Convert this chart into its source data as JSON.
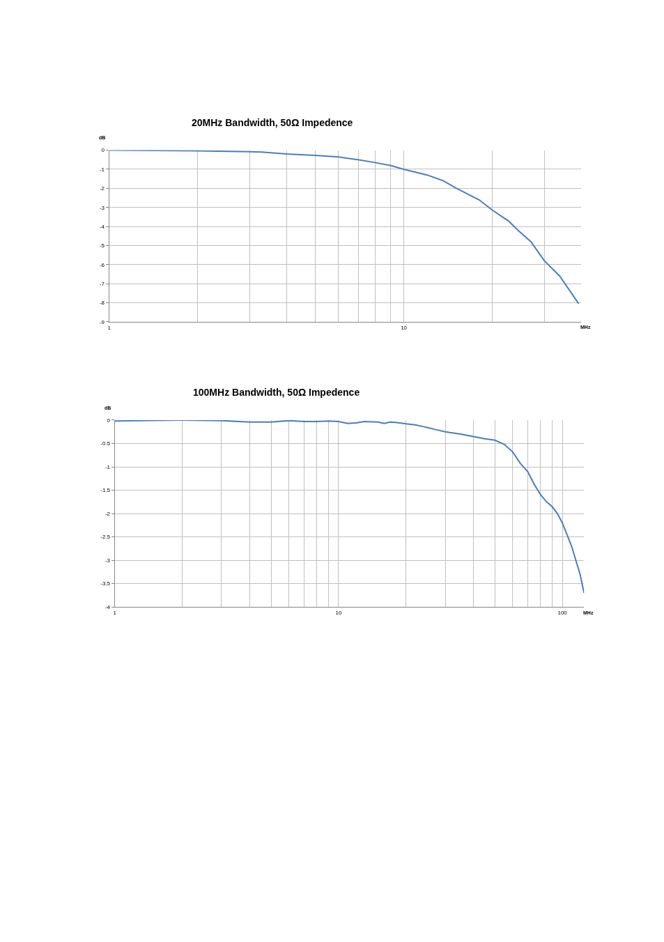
{
  "chart_data": [
    {
      "type": "line",
      "title": "20MHz Bandwidth, 50Ω Impedence",
      "xlabel": "MHz",
      "ylabel": "dB",
      "log": "x",
      "grid": true,
      "marker": "none",
      "xlim": [
        1,
        40
      ],
      "xticks": [
        1,
        {
          "value": 2,
          "label": null
        },
        {
          "value": 3,
          "label": null
        },
        {
          "value": 4,
          "label": null
        },
        {
          "value": 5,
          "label": null
        },
        {
          "value": 6,
          "label": null
        },
        {
          "value": 7,
          "label": null
        },
        {
          "value": 8,
          "label": null
        },
        {
          "value": 9,
          "label": null
        },
        10,
        {
          "value": 20,
          "label": null
        },
        {
          "value": 30,
          "label": null
        }
      ],
      "ylim": [
        -9,
        0
      ],
      "yticks": [
        0,
        -1,
        -2,
        -3,
        -4,
        -5,
        -6,
        -7,
        -8,
        -9
      ],
      "series": [
        {
          "color": "#4a7ebb",
          "x": [
            1,
            2,
            3,
            3.3,
            4,
            5,
            6,
            7,
            8,
            9,
            10,
            12,
            13.6,
            15.1,
            18,
            20,
            22.6,
            24.4,
            27,
            30,
            33.8,
            39.2
          ],
          "values": [
            0,
            -0.03,
            -0.08,
            -0.1,
            -0.2,
            -0.27,
            -0.35,
            -0.5,
            -0.65,
            -0.8,
            -1.0,
            -1.3,
            -1.6,
            -2.0,
            -2.6,
            -3.15,
            -3.7,
            -4.2,
            -4.8,
            -5.8,
            -6.6,
            -8.05
          ]
        }
      ]
    },
    {
      "type": "line",
      "title": "100MHz Bandwidth, 50Ω Impedence",
      "xlabel": "MHz",
      "ylabel": "dB",
      "log": "x",
      "grid": true,
      "marker": "none",
      "xlim": [
        1,
        125
      ],
      "xticks": [
        1,
        {
          "value": 2,
          "label": null
        },
        {
          "value": 3,
          "label": null
        },
        {
          "value": 4,
          "label": null
        },
        {
          "value": 5,
          "label": null
        },
        {
          "value": 6,
          "label": null
        },
        {
          "value": 7,
          "label": null
        },
        {
          "value": 8,
          "label": null
        },
        {
          "value": 9,
          "label": null
        },
        10,
        {
          "value": 20,
          "label": null
        },
        {
          "value": 30,
          "label": null
        },
        {
          "value": 40,
          "label": null
        },
        {
          "value": 50,
          "label": null
        },
        {
          "value": 60,
          "label": null
        },
        {
          "value": 70,
          "label": null
        },
        {
          "value": 80,
          "label": null
        },
        {
          "value": 90,
          "label": null
        },
        100
      ],
      "ylim": [
        -4,
        0
      ],
      "yticks": [
        0,
        -0.5,
        -1,
        -1.5,
        -2,
        -2.5,
        -3,
        -3.5,
        -4
      ],
      "series": [
        {
          "color": "#4a7ebb",
          "x": [
            1,
            2,
            3,
            4,
            5,
            6,
            7,
            8,
            9,
            10,
            11,
            12,
            13,
            15,
            16,
            17,
            18,
            20,
            22,
            24,
            25,
            27,
            30,
            35,
            40,
            45,
            50,
            55,
            60,
            65,
            70,
            75,
            80,
            85,
            90,
            95,
            100,
            110,
            120,
            125
          ],
          "values": [
            -0.02,
            0,
            -0.01,
            -0.04,
            -0.04,
            -0.01,
            -0.03,
            -0.03,
            -0.02,
            -0.03,
            -0.07,
            -0.06,
            -0.03,
            -0.04,
            -0.07,
            -0.04,
            -0.05,
            -0.08,
            -0.1,
            -0.14,
            -0.16,
            -0.2,
            -0.25,
            -0.3,
            -0.35,
            -0.4,
            -0.43,
            -0.52,
            -0.68,
            -0.93,
            -1.1,
            -1.38,
            -1.6,
            -1.75,
            -1.85,
            -2.0,
            -2.2,
            -2.7,
            -3.3,
            -3.7
          ]
        }
      ]
    }
  ]
}
